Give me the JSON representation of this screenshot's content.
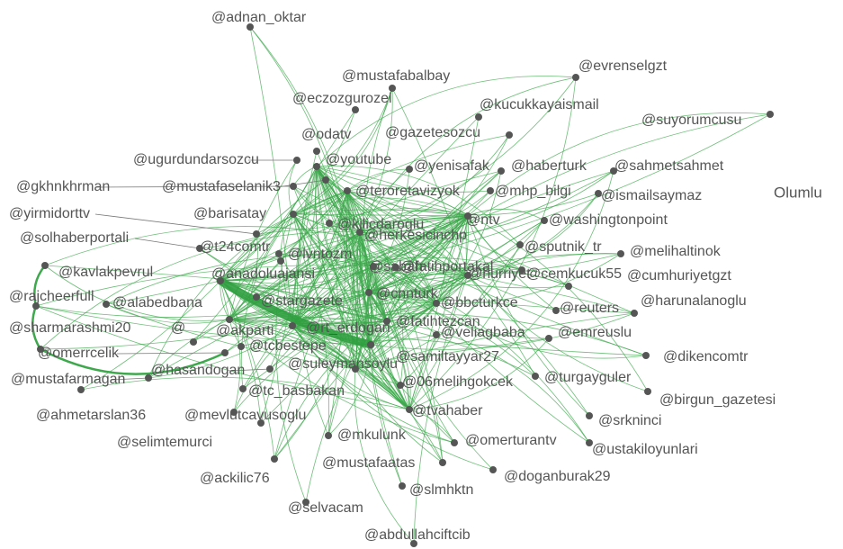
{
  "side_label": "Olumlu",
  "nodes": [
    {
      "label": "@adnan_oktar"
    },
    {
      "label": "@mustafabalbay"
    },
    {
      "label": "@evrenselgzt"
    },
    {
      "label": "@eczozgurozel"
    },
    {
      "label": "@kucukkayaismail"
    },
    {
      "label": "@suyorumcusu"
    },
    {
      "label": "@odatv"
    },
    {
      "label": "@gazetesozcu"
    },
    {
      "label": "@ugurdundarsozcu"
    },
    {
      "label": "@youtube"
    },
    {
      "label": "@yenisafak"
    },
    {
      "label": "@haberturk"
    },
    {
      "label": "@sahmetsahmet"
    },
    {
      "label": "@gkhnkhrman"
    },
    {
      "label": "@mustafaselanik3"
    },
    {
      "label": "@teroretavizyok"
    },
    {
      "label": "@mhp_bilgi"
    },
    {
      "label": "@ismailsaymaz"
    },
    {
      "label": "@yirmidorttv"
    },
    {
      "label": "@barisatay"
    },
    {
      "label": "@kilicdaroglu"
    },
    {
      "label": "@herkesicinchp"
    },
    {
      "label": "@ntv"
    },
    {
      "label": "@washingtonpoint"
    },
    {
      "label": "@solhaberportali"
    },
    {
      "label": "@t24comtr"
    },
    {
      "label": "@lvntozm"
    },
    {
      "label": "@sputnik_tr"
    },
    {
      "label": "@melihaltinok"
    },
    {
      "label": "@kavlakpevrul"
    },
    {
      "label": "@anadoluajansi"
    },
    {
      "label": "@sabah"
    },
    {
      "label": "@fatihportakal"
    },
    {
      "label": "@hurriyet"
    },
    {
      "label": "@cemkucuk55"
    },
    {
      "label": "@cumhuriyetgzt"
    },
    {
      "label": "@rajcheerfull"
    },
    {
      "label": "@alabedbana"
    },
    {
      "label": "@stargazete"
    },
    {
      "label": "@cnnturk"
    },
    {
      "label": "@bbcturkce"
    },
    {
      "label": "@harunalanoglu"
    },
    {
      "label": "@sharmarashmi20"
    },
    {
      "label": "@"
    },
    {
      "label": "@akparti"
    },
    {
      "label": "@rt_erdogan"
    },
    {
      "label": "@fatihtezcan"
    },
    {
      "label": "@veliagbaba"
    },
    {
      "label": "@reuters"
    },
    {
      "label": "@emreuslu"
    },
    {
      "label": "@omerrcelik"
    },
    {
      "label": "@tcbestepe"
    },
    {
      "label": "@samiltayyar27"
    },
    {
      "label": "@dikencomtr"
    },
    {
      "label": "@mustafarmagan"
    },
    {
      "label": "@hasandogan"
    },
    {
      "label": "@suleymansoylu"
    },
    {
      "label": "@06melihgokcek"
    },
    {
      "label": "@turgayguler"
    },
    {
      "label": "@tc_basbakan"
    },
    {
      "label": "@birgun_gazetesi"
    },
    {
      "label": "@ahmetarslan36"
    },
    {
      "label": "@mevlutcavusoglu"
    },
    {
      "label": "@tvahaber"
    },
    {
      "label": "@srkninci"
    },
    {
      "label": "@selimtemurci"
    },
    {
      "label": "@mkulunk"
    },
    {
      "label": "@omerturantv"
    },
    {
      "label": "@ustakiloyunlari"
    },
    {
      "label": "@mustafaatas"
    },
    {
      "label": "@ackilic76"
    },
    {
      "label": "@doganburak29"
    },
    {
      "label": "@slmhktn"
    },
    {
      "label": "@selvacam"
    },
    {
      "label": "@abdullahciftcib"
    }
  ]
}
